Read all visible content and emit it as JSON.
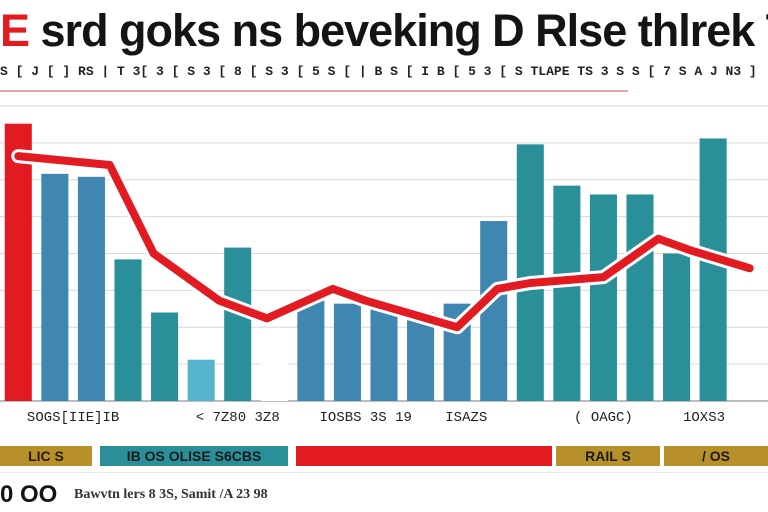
{
  "header": {
    "title_accent": "E",
    "title": "srd goks ns beveking D Rlse thlrek Tew",
    "subtitle": "S [ J [ ] RS | T 3[ 3 [ S 3 [ 8 [ S 3 [ 5 S [ | B S [ I B [ 5 3 [ S TLAPE TS 3 S S [ 7 S A J N3 ]"
  },
  "chart_data": {
    "type": "bar",
    "title": "srd goks ns beveking D Rlse thlrek Tew",
    "xlabel": "",
    "ylabel": "",
    "ylim": [
      0,
      100
    ],
    "grid": true,
    "legend": "none",
    "x": [
      1,
      2,
      3,
      4,
      5,
      6,
      7,
      8,
      9,
      10,
      11,
      12,
      13,
      14,
      15,
      16,
      17,
      18,
      19,
      20,
      21
    ],
    "series": [
      {
        "kind": "bar",
        "values": [
          94,
          77,
          76,
          48,
          30,
          14,
          52,
          22,
          34,
          33,
          31,
          30,
          33,
          61,
          87,
          73,
          70,
          70,
          50,
          89,
          0
        ],
        "colors": [
          "#e21b23",
          "#3f86b0",
          "#3f86b0",
          "#2a8f98",
          "#2a8f98",
          "#55b4cc",
          "#2a8f98",
          "#ffffff",
          "#3f86b0",
          "#3f86b0",
          "#3f86b0",
          "#3f86b0",
          "#3f86b0",
          "#3f86b0",
          "#2a8f98",
          "#2a8f98",
          "#2a8f98",
          "#2a8f98",
          "#2a8f98",
          "#2a8f98",
          "#2a8f98"
        ]
      },
      {
        "kind": "line",
        "color": "#e21b23",
        "x": [
          1.0,
          3.5,
          4.7,
          6.5,
          7.8,
          9.6,
          10.5,
          13.0,
          14.1,
          15.0,
          17.0,
          18.5,
          19.4,
          21.0
        ],
        "values": [
          83,
          80,
          50,
          34,
          28,
          38,
          34,
          25,
          38,
          40,
          42,
          55,
          51,
          45
        ]
      }
    ],
    "tick_groups": [
      {
        "label": "SOGS[IIE]IB",
        "x_from": 1,
        "x_to": 4
      },
      {
        "label": "< 7Z80 3Z8",
        "x_from": 5.5,
        "x_to": 8.5
      },
      {
        "label": "IOSBS 3S 19",
        "x_from": 9,
        "x_to": 12
      },
      {
        "label": "ISAZS",
        "x_from": 12.3,
        "x_to": 14.2
      },
      {
        "label": "( OAGC)",
        "x_from": 16,
        "x_to": 18
      },
      {
        "label": "1OXS3",
        "x_from": 18.5,
        "x_to": 21
      }
    ],
    "bands": [
      "LIC S",
      "IB OS  OLISE S6CBS",
      "",
      "RAIL  S",
      "/ OS"
    ]
  },
  "footer": {
    "number": "0 OO",
    "note": "Bawvtn lers 8 3S, Samit /A 23 98"
  },
  "colors": {
    "accent_red": "#e21b23",
    "bar_blue": "#3f86b0",
    "bar_teal": "#2a8f98",
    "band_gold": "#b8902a"
  }
}
